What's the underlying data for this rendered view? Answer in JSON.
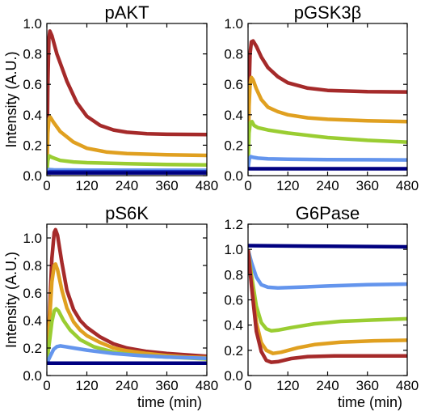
{
  "chart_data": [
    {
      "type": "line",
      "title": "pAKT",
      "xlabel": "",
      "ylabel": "Intensity (A.U.)",
      "xlim": [
        0,
        480
      ],
      "ylim": [
        0,
        1.0
      ],
      "xticks": [
        "0",
        "120",
        "240",
        "360",
        "480"
      ],
      "yticks": [
        "0.0",
        "0.2",
        "0.4",
        "0.6",
        "0.8",
        "1.0"
      ],
      "series": [
        {
          "color": "#a52a2a",
          "points": [
            [
              0,
              0.02
            ],
            [
              3,
              0.6
            ],
            [
              6,
              0.9
            ],
            [
              9,
              0.95
            ],
            [
              15,
              0.92
            ],
            [
              30,
              0.8
            ],
            [
              60,
              0.62
            ],
            [
              90,
              0.48
            ],
            [
              120,
              0.39
            ],
            [
              160,
              0.33
            ],
            [
              200,
              0.3
            ],
            [
              240,
              0.285
            ],
            [
              300,
              0.275
            ],
            [
              360,
              0.272
            ],
            [
              480,
              0.27
            ]
          ]
        },
        {
          "color": "#e0a020",
          "points": [
            [
              0,
              0.02
            ],
            [
              3,
              0.28
            ],
            [
              6,
              0.37
            ],
            [
              10,
              0.385
            ],
            [
              20,
              0.35
            ],
            [
              40,
              0.29
            ],
            [
              80,
              0.22
            ],
            [
              120,
              0.18
            ],
            [
              180,
              0.155
            ],
            [
              240,
              0.145
            ],
            [
              360,
              0.137
            ],
            [
              480,
              0.133
            ]
          ]
        },
        {
          "color": "#9acd32",
          "points": [
            [
              0,
              0.02
            ],
            [
              3,
              0.1
            ],
            [
              7,
              0.13
            ],
            [
              15,
              0.12
            ],
            [
              40,
              0.1
            ],
            [
              80,
              0.09
            ],
            [
              120,
              0.085
            ],
            [
              240,
              0.078
            ],
            [
              360,
              0.073
            ],
            [
              480,
              0.07
            ]
          ]
        },
        {
          "color": "#6495ed",
          "points": [
            [
              0,
              0.02
            ],
            [
              5,
              0.04
            ],
            [
              20,
              0.038
            ],
            [
              120,
              0.036
            ],
            [
              480,
              0.035
            ]
          ]
        },
        {
          "color": "#1e3cc8",
          "points": [
            [
              0,
              0.02
            ],
            [
              10,
              0.026
            ],
            [
              480,
              0.025
            ]
          ]
        },
        {
          "color": "#000080",
          "points": [
            [
              0,
              0.018
            ],
            [
              480,
              0.018
            ]
          ]
        }
      ]
    },
    {
      "type": "line",
      "title": "pGSK3β",
      "xlabel": "",
      "ylabel": "",
      "xlim": [
        0,
        480
      ],
      "ylim": [
        0,
        1.0
      ],
      "xticks": [
        "0",
        "120",
        "240",
        "360",
        "480"
      ],
      "yticks": [
        "0.0",
        "0.2",
        "0.4",
        "0.6",
        "0.8",
        "1.0"
      ],
      "series": [
        {
          "color": "#a52a2a",
          "points": [
            [
              0,
              0.05
            ],
            [
              3,
              0.55
            ],
            [
              6,
              0.8
            ],
            [
              10,
              0.88
            ],
            [
              15,
              0.885
            ],
            [
              25,
              0.85
            ],
            [
              40,
              0.78
            ],
            [
              60,
              0.71
            ],
            [
              90,
              0.65
            ],
            [
              120,
              0.61
            ],
            [
              180,
              0.575
            ],
            [
              240,
              0.56
            ],
            [
              360,
              0.552
            ],
            [
              480,
              0.55
            ]
          ]
        },
        {
          "color": "#e0a020",
          "points": [
            [
              0,
              0.05
            ],
            [
              3,
              0.45
            ],
            [
              6,
              0.6
            ],
            [
              10,
              0.645
            ],
            [
              15,
              0.63
            ],
            [
              25,
              0.57
            ],
            [
              40,
              0.5
            ],
            [
              60,
              0.45
            ],
            [
              90,
              0.42
            ],
            [
              120,
              0.4
            ],
            [
              180,
              0.38
            ],
            [
              240,
              0.37
            ],
            [
              360,
              0.36
            ],
            [
              480,
              0.355
            ]
          ]
        },
        {
          "color": "#9acd32",
          "points": [
            [
              0,
              0.05
            ],
            [
              3,
              0.28
            ],
            [
              7,
              0.35
            ],
            [
              12,
              0.355
            ],
            [
              18,
              0.33
            ],
            [
              30,
              0.315
            ],
            [
              60,
              0.3
            ],
            [
              120,
              0.28
            ],
            [
              180,
              0.265
            ],
            [
              240,
              0.25
            ],
            [
              360,
              0.232
            ],
            [
              480,
              0.22
            ]
          ]
        },
        {
          "color": "#6495ed",
          "points": [
            [
              0,
              0.05
            ],
            [
              4,
              0.11
            ],
            [
              8,
              0.125
            ],
            [
              15,
              0.12
            ],
            [
              30,
              0.115
            ],
            [
              60,
              0.11
            ],
            [
              120,
              0.108
            ],
            [
              240,
              0.105
            ],
            [
              360,
              0.104
            ],
            [
              480,
              0.103
            ]
          ]
        },
        {
          "color": "#000080",
          "points": [
            [
              0,
              0.045
            ],
            [
              480,
              0.045
            ]
          ]
        }
      ]
    },
    {
      "type": "line",
      "title": "pS6K",
      "xlabel": "time (min)",
      "ylabel": "Intensity (A.U.)",
      "xlim": [
        0,
        480
      ],
      "ylim": [
        0,
        1.1
      ],
      "xticks": [
        "0",
        "120",
        "240",
        "360",
        "480"
      ],
      "yticks": [
        "0.0",
        "0.2",
        "0.4",
        "0.6",
        "0.8",
        "1.0"
      ],
      "series": [
        {
          "color": "#a52a2a",
          "points": [
            [
              0,
              0.1
            ],
            [
              8,
              0.45
            ],
            [
              15,
              0.85
            ],
            [
              22,
              1.04
            ],
            [
              26,
              1.06
            ],
            [
              32,
              1.02
            ],
            [
              45,
              0.82
            ],
            [
              60,
              0.62
            ],
            [
              80,
              0.48
            ],
            [
              100,
              0.4
            ],
            [
              120,
              0.35
            ],
            [
              160,
              0.28
            ],
            [
              200,
              0.23
            ],
            [
              240,
              0.2
            ],
            [
              300,
              0.175
            ],
            [
              360,
              0.16
            ],
            [
              420,
              0.15
            ],
            [
              480,
              0.14
            ]
          ]
        },
        {
          "color": "#e0a020",
          "points": [
            [
              0,
              0.1
            ],
            [
              8,
              0.4
            ],
            [
              15,
              0.68
            ],
            [
              22,
              0.8
            ],
            [
              26,
              0.81
            ],
            [
              32,
              0.77
            ],
            [
              45,
              0.62
            ],
            [
              60,
              0.49
            ],
            [
              80,
              0.39
            ],
            [
              100,
              0.33
            ],
            [
              120,
              0.29
            ],
            [
              160,
              0.24
            ],
            [
              200,
              0.2
            ],
            [
              240,
              0.18
            ],
            [
              300,
              0.16
            ],
            [
              360,
              0.145
            ],
            [
              420,
              0.135
            ],
            [
              480,
              0.13
            ]
          ]
        },
        {
          "color": "#9acd32",
          "points": [
            [
              0,
              0.1
            ],
            [
              8,
              0.25
            ],
            [
              15,
              0.39
            ],
            [
              22,
              0.47
            ],
            [
              28,
              0.485
            ],
            [
              35,
              0.47
            ],
            [
              50,
              0.4
            ],
            [
              70,
              0.33
            ],
            [
              100,
              0.26
            ],
            [
              140,
              0.21
            ],
            [
              200,
              0.17
            ],
            [
              260,
              0.15
            ],
            [
              320,
              0.14
            ],
            [
              400,
              0.13
            ],
            [
              480,
              0.12
            ]
          ]
        },
        {
          "color": "#6495ed",
          "points": [
            [
              0,
              0.09
            ],
            [
              10,
              0.14
            ],
            [
              20,
              0.19
            ],
            [
              30,
              0.21
            ],
            [
              40,
              0.215
            ],
            [
              55,
              0.21
            ],
            [
              80,
              0.2
            ],
            [
              120,
              0.185
            ],
            [
              200,
              0.16
            ],
            [
              280,
              0.145
            ],
            [
              360,
              0.135
            ],
            [
              480,
              0.125
            ]
          ]
        },
        {
          "color": "#000080",
          "points": [
            [
              0,
              0.09
            ],
            [
              480,
              0.09
            ]
          ]
        }
      ]
    },
    {
      "type": "line",
      "title": "G6Pase",
      "xlabel": "time (min)",
      "ylabel": "",
      "xlim": [
        0,
        480
      ],
      "ylim": [
        0,
        1.2
      ],
      "xticks": [
        "0",
        "120",
        "240",
        "360",
        "480"
      ],
      "yticks": [
        "0.0",
        "0.2",
        "0.4",
        "0.6",
        "0.8",
        "1.0",
        "1.2"
      ],
      "series": [
        {
          "color": "#000080",
          "points": [
            [
              0,
              1.03
            ],
            [
              240,
              1.025
            ],
            [
              480,
              1.02
            ]
          ]
        },
        {
          "color": "#6495ed",
          "points": [
            [
              0,
              1.0
            ],
            [
              10,
              0.9
            ],
            [
              25,
              0.78
            ],
            [
              40,
              0.72
            ],
            [
              60,
              0.7
            ],
            [
              90,
              0.695
            ],
            [
              150,
              0.7
            ],
            [
              240,
              0.71
            ],
            [
              360,
              0.72
            ],
            [
              480,
              0.725
            ]
          ]
        },
        {
          "color": "#9acd32",
          "points": [
            [
              0,
              1.0
            ],
            [
              10,
              0.8
            ],
            [
              25,
              0.55
            ],
            [
              40,
              0.42
            ],
            [
              55,
              0.37
            ],
            [
              70,
              0.355
            ],
            [
              90,
              0.36
            ],
            [
              130,
              0.38
            ],
            [
              200,
              0.41
            ],
            [
              280,
              0.43
            ],
            [
              380,
              0.44
            ],
            [
              480,
              0.45
            ]
          ]
        },
        {
          "color": "#e0a020",
          "points": [
            [
              0,
              1.0
            ],
            [
              10,
              0.75
            ],
            [
              25,
              0.42
            ],
            [
              40,
              0.26
            ],
            [
              55,
              0.2
            ],
            [
              75,
              0.175
            ],
            [
              100,
              0.185
            ],
            [
              150,
              0.22
            ],
            [
              200,
              0.245
            ],
            [
              280,
              0.265
            ],
            [
              380,
              0.275
            ],
            [
              480,
              0.28
            ]
          ]
        },
        {
          "color": "#a52a2a",
          "points": [
            [
              0,
              1.0
            ],
            [
              10,
              0.72
            ],
            [
              25,
              0.35
            ],
            [
              40,
              0.19
            ],
            [
              55,
              0.12
            ],
            [
              70,
              0.105
            ],
            [
              90,
              0.11
            ],
            [
              130,
              0.135
            ],
            [
              180,
              0.15
            ],
            [
              260,
              0.155
            ],
            [
              360,
              0.155
            ],
            [
              480,
              0.155
            ]
          ]
        }
      ]
    }
  ]
}
